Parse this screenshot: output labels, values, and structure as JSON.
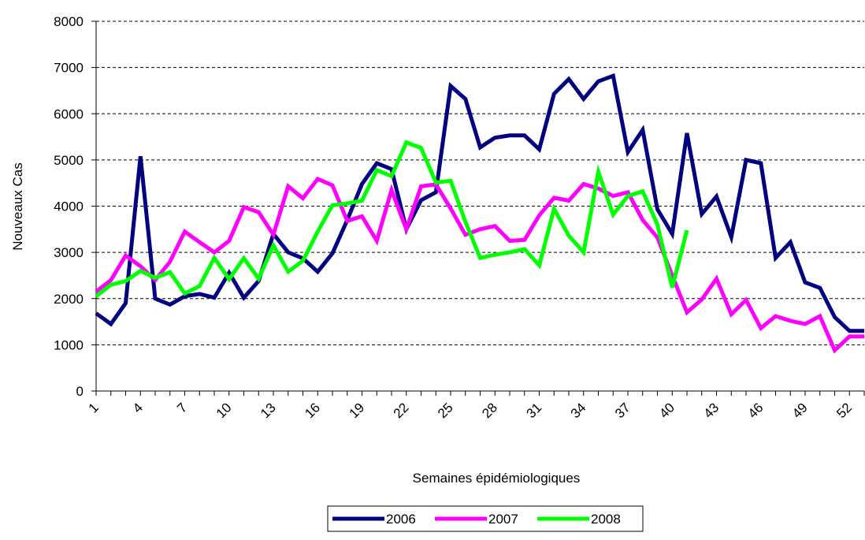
{
  "chart_data": {
    "type": "line",
    "x_label": "Semaines épidémiologiques",
    "y_label": "Nouveaux Cas",
    "categories": [
      1,
      null,
      null,
      4,
      null,
      null,
      7,
      null,
      null,
      10,
      null,
      null,
      13,
      null,
      null,
      16,
      null,
      null,
      19,
      null,
      null,
      22,
      null,
      null,
      25,
      null,
      null,
      28,
      null,
      null,
      31,
      null,
      null,
      34,
      null,
      null,
      37,
      null,
      null,
      40,
      null,
      null,
      43,
      null,
      null,
      46,
      null,
      null,
      49,
      null,
      null,
      52,
      null
    ],
    "series": [
      {
        "name": "2006",
        "color": "#000080",
        "values": [
          1680,
          1450,
          1900,
          5080,
          2000,
          1870,
          2050,
          2100,
          2020,
          2560,
          2020,
          2380,
          3400,
          3000,
          2870,
          2580,
          2980,
          3700,
          4480,
          4930,
          4800,
          3500,
          4130,
          4300,
          6600,
          6320,
          5270,
          5480,
          5530,
          5530,
          5230,
          6430,
          6750,
          6320,
          6700,
          6820,
          5170,
          5650,
          3930,
          3400,
          5580,
          3830,
          4210,
          3330,
          5000,
          4930,
          2880,
          3220,
          2350,
          2230,
          1600,
          1300,
          1300
        ]
      },
      {
        "name": "2007",
        "color": "#ff00ff",
        "values": [
          2150,
          2400,
          2930,
          2700,
          2400,
          2800,
          3450,
          3220,
          3000,
          3250,
          3980,
          3870,
          3380,
          4430,
          4170,
          4590,
          4450,
          3680,
          3780,
          3250,
          4350,
          3500,
          4430,
          4470,
          3950,
          3380,
          3500,
          3570,
          3250,
          3270,
          3800,
          4180,
          4120,
          4480,
          4380,
          4220,
          4300,
          3700,
          3320,
          2500,
          1700,
          1980,
          2430,
          1660,
          1970,
          1360,
          1620,
          1520,
          1450,
          1620,
          880,
          1180,
          1180
        ]
      },
      {
        "name": "2008",
        "color": "#00ff00",
        "values": [
          2050,
          2300,
          2380,
          2600,
          2450,
          2570,
          2110,
          2270,
          2880,
          2420,
          2870,
          2430,
          3150,
          2580,
          2820,
          3450,
          4020,
          4060,
          4120,
          4780,
          4650,
          5380,
          5260,
          4510,
          4550,
          3660,
          2880,
          2950,
          3000,
          3070,
          2720,
          3940,
          3360,
          3000,
          4740,
          3820,
          4220,
          4320,
          3600,
          2240,
          3480,
          null,
          null,
          null,
          null,
          null,
          null,
          null,
          null,
          null,
          null,
          null,
          null
        ]
      }
    ],
    "ylim": [
      0,
      8000
    ],
    "yticks": [
      0,
      1000,
      2000,
      3000,
      4000,
      5000,
      6000,
      7000,
      8000
    ],
    "grid": true,
    "legend": "bottom"
  }
}
